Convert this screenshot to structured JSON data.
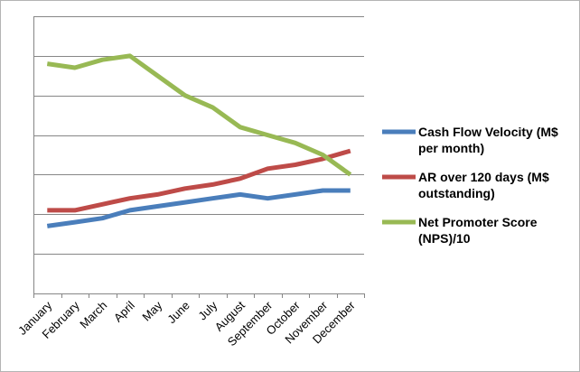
{
  "chart_data": {
    "type": "line",
    "title": "",
    "xlabel": "",
    "ylabel": "",
    "categories": [
      "January",
      "February",
      "March",
      "April",
      "May",
      "June",
      "July",
      "August",
      "September",
      "October",
      "November",
      "December"
    ],
    "ylim": [
      0,
      7
    ],
    "y_grid_step": 1,
    "y_tick_labels_visible": false,
    "grid": "horizontal",
    "legend_position": "right",
    "series": [
      {
        "name": "Cash Flow Velocity (M$ per month)",
        "name_lines": [
          "Cash Flow Velocity (M$",
          "per month)"
        ],
        "color": "#4a7ebb",
        "values": [
          1.7,
          1.8,
          1.9,
          2.1,
          2.2,
          2.3,
          2.4,
          2.5,
          2.4,
          2.5,
          2.6,
          2.6
        ]
      },
      {
        "name": "AR over 120 days (M$ outstanding)",
        "name_lines": [
          "AR over 120 days (M$",
          "outstanding)"
        ],
        "color": "#be4b48",
        "values": [
          2.1,
          2.1,
          2.25,
          2.4,
          2.5,
          2.65,
          2.75,
          2.9,
          3.15,
          3.25,
          3.4,
          3.6
        ]
      },
      {
        "name": "Net Promoter Score (NPS)/10",
        "name_lines": [
          "Net Promoter Score",
          "(NPS)/10"
        ],
        "color": "#98b954",
        "values": [
          5.8,
          5.7,
          5.9,
          6.0,
          5.5,
          5.0,
          4.7,
          4.2,
          4.0,
          3.8,
          3.5,
          3.0
        ]
      }
    ]
  }
}
